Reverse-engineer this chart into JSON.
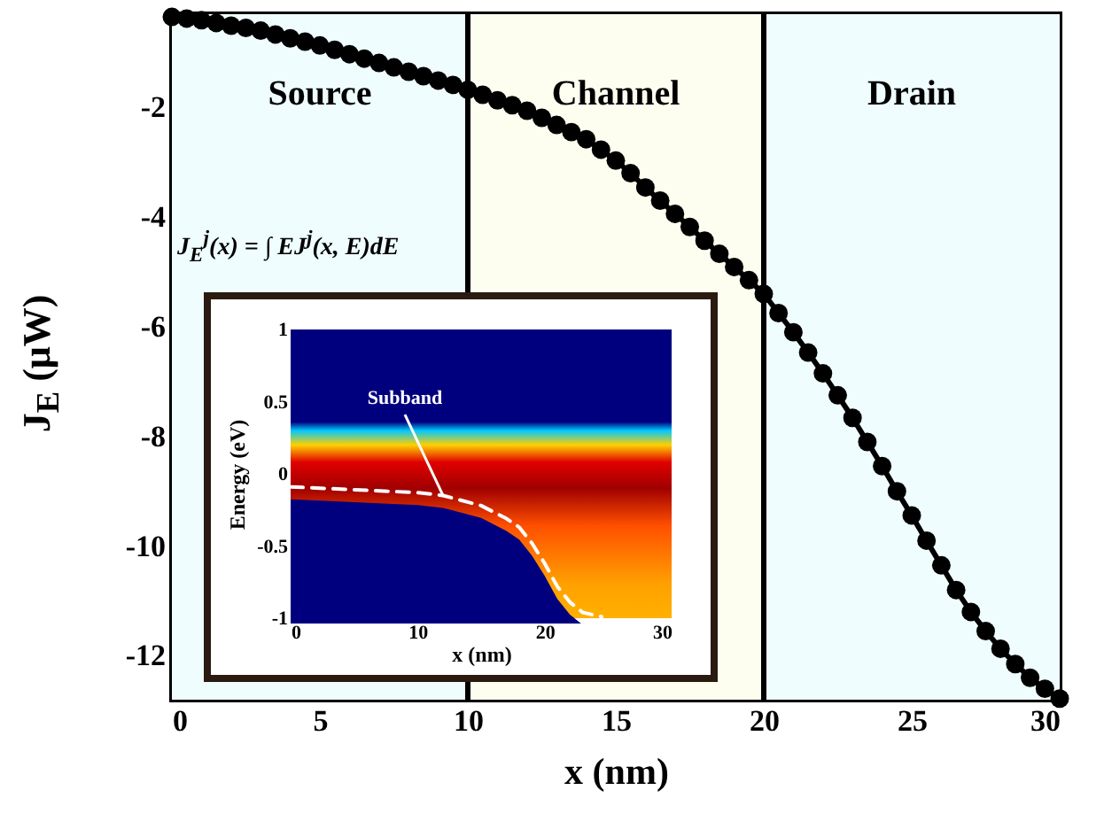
{
  "chart_data": [
    {
      "type": "line",
      "xlabel": "x (nm)",
      "ylabel": "J$_{E}$ (μW)",
      "x": [
        0,
        0.5,
        1,
        1.5,
        2,
        2.5,
        3,
        3.5,
        4,
        4.5,
        5,
        5.5,
        6,
        6.5,
        7,
        7.5,
        8,
        8.5,
        9,
        9.5,
        10,
        10.5,
        11,
        11.5,
        12,
        12.5,
        13,
        13.5,
        14,
        14.5,
        15,
        15.5,
        16,
        16.5,
        17,
        17.5,
        18,
        18.5,
        19,
        19.5,
        20,
        20.5,
        21,
        21.5,
        22,
        22.5,
        23,
        23.5,
        24,
        24.5,
        25,
        25.5,
        26,
        26.5,
        27,
        27.5,
        28,
        28.5,
        29,
        29.5,
        30
      ],
      "series": [
        {
          "color": "#000000",
          "values": [
            -0.35,
            -0.38,
            -0.41,
            -0.46,
            -0.51,
            -0.55,
            -0.6,
            -0.67,
            -0.74,
            -0.8,
            -0.87,
            -0.95,
            -1.03,
            -1.11,
            -1.19,
            -1.27,
            -1.35,
            -1.43,
            -1.51,
            -1.59,
            -1.68,
            -1.77,
            -1.87,
            -1.96,
            -2.06,
            -2.19,
            -2.32,
            -2.45,
            -2.58,
            -2.77,
            -2.97,
            -3.2,
            -3.46,
            -3.7,
            -3.94,
            -4.18,
            -4.43,
            -4.67,
            -4.91,
            -5.15,
            -5.4,
            -5.75,
            -6.1,
            -6.47,
            -6.85,
            -7.25,
            -7.66,
            -8.1,
            -8.54,
            -9.0,
            -9.44,
            -9.9,
            -10.35,
            -10.8,
            -11.2,
            -11.55,
            -11.87,
            -12.15,
            -12.4,
            -12.6,
            -12.78
          ]
        }
      ],
      "xlim": [
        0,
        30
      ],
      "ylim": [
        -12.8,
        -0.3
      ],
      "xticks": [
        0,
        5,
        10,
        15,
        20,
        25,
        30
      ],
      "yticks": [
        -2,
        -4,
        -6,
        -8,
        -10,
        -12
      ],
      "bands": [
        {
          "axis": "x",
          "from": 0,
          "to": 10,
          "label": "Source",
          "color": "#effdff"
        },
        {
          "axis": "x",
          "from": 10,
          "to": 20,
          "label": "Channel",
          "color": "#fefef0"
        },
        {
          "axis": "x",
          "from": 20,
          "to": 30,
          "label": "Drain",
          "color": "#effdff"
        }
      ],
      "ref_lines": [
        {
          "axis": "x",
          "value": 10,
          "color": "#000000"
        },
        {
          "axis": "x",
          "value": 20,
          "color": "#000000"
        }
      ],
      "annotations": [
        "J$_{E}$$^{j}$(x) = ∫ EJ$^{j}$(x, E)dE"
      ],
      "marker": "circle",
      "grid": false
    },
    {
      "type": "line",
      "xlabel": "x (nm)",
      "ylabel": "Energy (eV)",
      "x": [
        0,
        5,
        10,
        12,
        15,
        17,
        18,
        19,
        20,
        21,
        22,
        23,
        24.5
      ],
      "series": [
        {
          "color": "#ffffff",
          "values": [
            -0.09,
            -0.11,
            -0.13,
            -0.15,
            -0.22,
            -0.31,
            -0.37,
            -0.48,
            -0.62,
            -0.78,
            -0.89,
            -0.96,
            -0.99
          ]
        }
      ],
      "xlim": [
        0,
        30
      ],
      "ylim": [
        -1,
        1
      ],
      "xticks": [
        0,
        10,
        20,
        30
      ],
      "yticks": [
        -1,
        -0.5,
        0,
        0.5,
        1
      ],
      "annotations": [
        {
          "text": "Subband",
          "x": 12,
          "y": -0.15
        }
      ],
      "line_style": "dashed",
      "grid": false
    }
  ]
}
